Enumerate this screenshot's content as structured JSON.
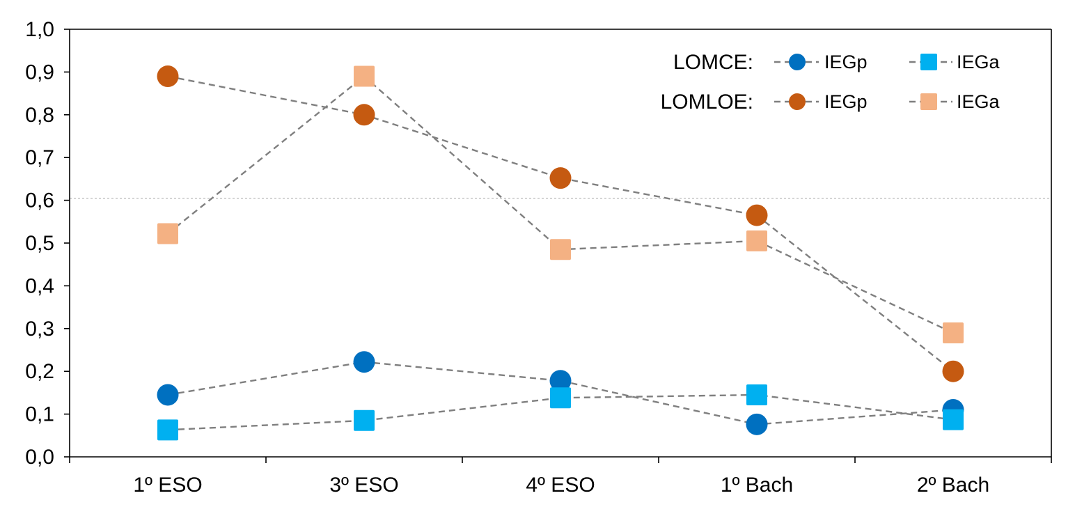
{
  "chart_data": {
    "type": "line",
    "title": "",
    "xlabel": "",
    "ylabel": "",
    "ylim": [
      0,
      1.0
    ],
    "yticks": [
      "0,0",
      "0,1",
      "0,2",
      "0,3",
      "0,4",
      "0,5",
      "0,6",
      "0,7",
      "0,8",
      "0,9",
      "1,0"
    ],
    "categories": [
      "1º ESO",
      "3º ESO",
      "4º ESO",
      "1º Bach",
      "2º Bach"
    ],
    "reference_line": 0.605,
    "grid": false,
    "legend": {
      "position": "top-right",
      "groups": [
        {
          "label": "LOMCE:",
          "entries": [
            "IEGp",
            "IEGa"
          ]
        },
        {
          "label": "LOMLOE:",
          "entries": [
            "IEGp",
            "IEGa"
          ]
        }
      ]
    },
    "series": [
      {
        "name": "LOMCE IEGp",
        "marker": "circle",
        "color": "#0070c0",
        "values": [
          0.145,
          0.222,
          0.178,
          0.076,
          0.11
        ]
      },
      {
        "name": "LOMCE IEGa",
        "marker": "square",
        "color": "#00b0f0",
        "values": [
          0.063,
          0.085,
          0.138,
          0.145,
          0.087
        ]
      },
      {
        "name": "LOMLOE IEGp",
        "marker": "circle",
        "color": "#c55a11",
        "values": [
          0.89,
          0.8,
          0.652,
          0.565,
          0.2
        ]
      },
      {
        "name": "LOMLOE IEGa",
        "marker": "square",
        "color": "#f4b183",
        "values": [
          0.522,
          0.89,
          0.485,
          0.505,
          0.29
        ]
      }
    ]
  }
}
